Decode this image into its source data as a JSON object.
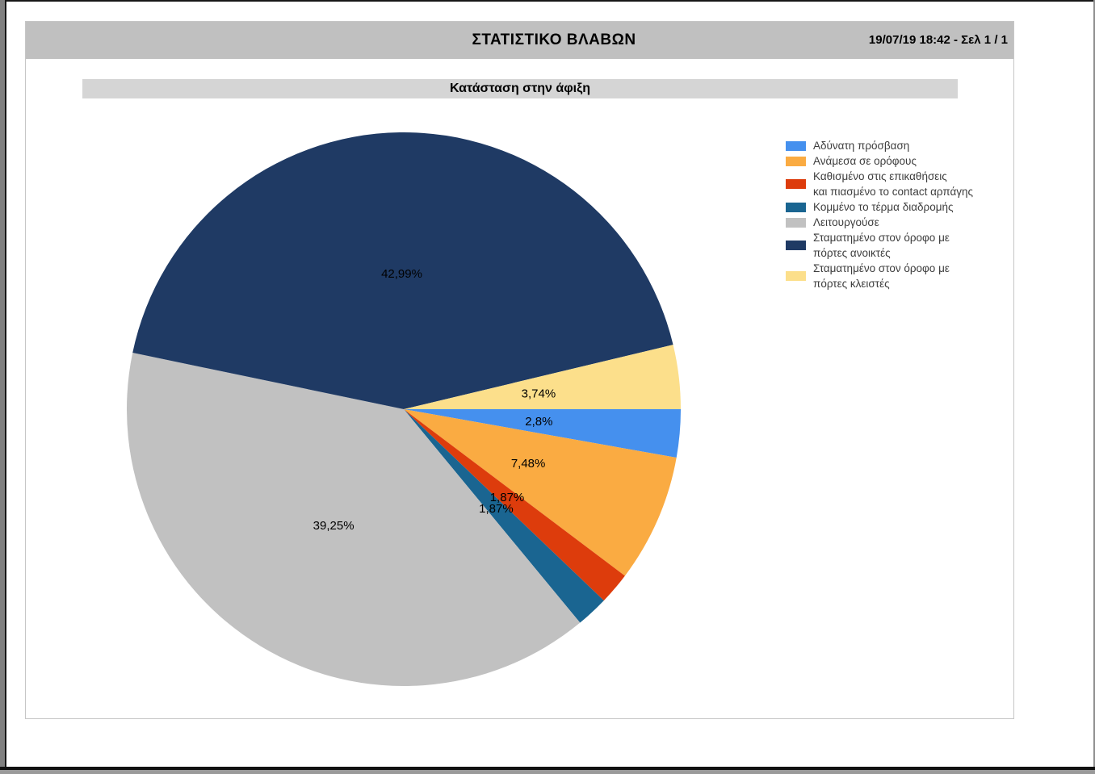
{
  "window": {
    "header": {
      "title": "ΣΤΑΤΙΣΤΙΚΟ ΒΛΑΒΩΝ",
      "timestamp_page": "19/07/19 18:42 - Σελ 1 / 1"
    },
    "section_title": "Κατάσταση στην άφιξη"
  },
  "chart_data": {
    "type": "pie",
    "title": "Κατάσταση στην άφιξη",
    "legend_position": "right",
    "start_angle_deg": 0,
    "direction": "clockwise",
    "label_radius_factor": 0.49,
    "slices": [
      {
        "label": "Αδύνατη πρόσβαση",
        "value": 2.8,
        "percent_label": "2,8%",
        "color": "#4590ee",
        "legend_lines": [
          "Αδύνατη πρόσβαση"
        ]
      },
      {
        "label": "Ανάμεσα σε ορόφους",
        "value": 7.48,
        "percent_label": "7,48%",
        "color": "#faab42",
        "legend_lines": [
          "Ανάμεσα σε ορόφους"
        ]
      },
      {
        "label": "Καθισμένο στις επικαθήσεις και πιασμένο το contact αρπάγης",
        "value": 1.87,
        "percent_label": "1,87%",
        "color": "#dd3c0c",
        "legend_lines": [
          "Καθισμένο στις επικαθήσεις",
          "και πιασμένο το contact αρπάγης"
        ]
      },
      {
        "label": "Κομμένο το τέρμα διαδρομής",
        "value": 1.87,
        "percent_label": "1,87%",
        "color": "#1a6591",
        "legend_lines": [
          "Κομμένο το τέρμα διαδρομής"
        ]
      },
      {
        "label": "Λειτουργούσε",
        "value": 39.25,
        "percent_label": "39,25%",
        "color": "#c1c1c1",
        "legend_lines": [
          "Λειτουργούσε"
        ]
      },
      {
        "label": "Σταματημένο στον όροφο με πόρτες ανοικτές",
        "value": 42.99,
        "percent_label": "42,99%",
        "color": "#1f3a64",
        "legend_lines": [
          "Σταματημένο στον όροφο με",
          "πόρτες ανοικτές"
        ]
      },
      {
        "label": "Σταματημένο στον όροφο με πόρτες κλειστές",
        "value": 3.74,
        "percent_label": "3,74%",
        "color": "#fcdf8b",
        "legend_lines": [
          "Σταματημένο στον όροφο με",
          "πόρτες κλειστές"
        ]
      }
    ]
  }
}
